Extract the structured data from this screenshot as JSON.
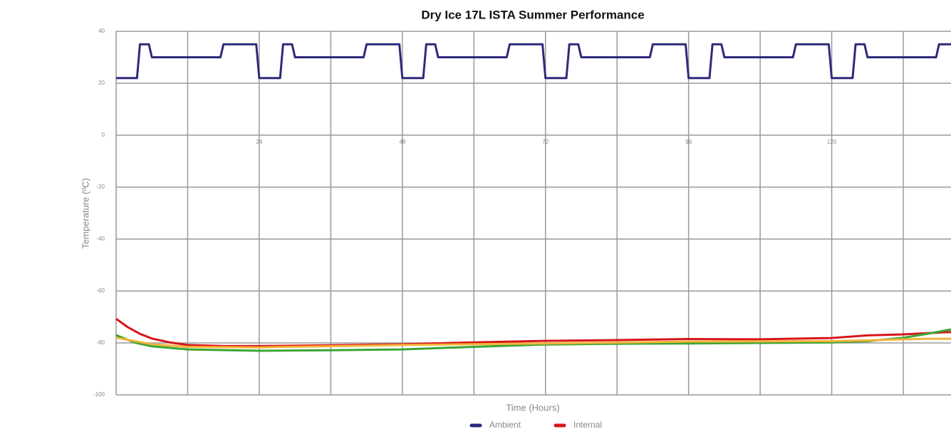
{
  "chart_data": {
    "type": "line",
    "title": "Dry Ice 17L ISTA Summer Performance",
    "x_label": "Time (Hours)",
    "y_label": "Temperature (ºC)",
    "xlim": [
      0,
      140
    ],
    "ylim": [
      -100,
      40
    ],
    "xticks": [
      24,
      48,
      72,
      96,
      120
    ],
    "x_minor_ticks": [
      12,
      36,
      60,
      84,
      108,
      132
    ],
    "yticks": [
      -100,
      -80,
      -60,
      -40,
      -20,
      0,
      20,
      40
    ],
    "grid": true,
    "legend": "bottom",
    "series": [
      {
        "name": "Ambient",
        "color": "#2e2a7a",
        "x": [
          0,
          3.5,
          4,
          5.5,
          6,
          17.5,
          18,
          23.5,
          24,
          27.5,
          28,
          29.5,
          30,
          41.5,
          42,
          47.5,
          48,
          51.5,
          52,
          53.5,
          54,
          65.5,
          66,
          71.5,
          72,
          75.5,
          76,
          77.5,
          78,
          89.5,
          90,
          95.5,
          96,
          99.5,
          100,
          101.5,
          102,
          113.5,
          114,
          119.5,
          120,
          123.5,
          124,
          125.5,
          126,
          137.5,
          138,
          140
        ],
        "values": [
          22,
          22,
          35,
          35,
          30,
          30,
          35,
          35,
          22,
          22,
          35,
          35,
          30,
          30,
          35,
          35,
          22,
          22,
          35,
          35,
          30,
          30,
          35,
          35,
          22,
          22,
          35,
          35,
          30,
          30,
          35,
          35,
          22,
          22,
          35,
          35,
          30,
          30,
          35,
          35,
          22,
          22,
          35,
          35,
          30,
          30,
          35,
          35
        ]
      },
      {
        "name": "Internal",
        "color": "#d7151a",
        "x": [
          0,
          2,
          4,
          6,
          9,
          12,
          18,
          24,
          36,
          48,
          60,
          72,
          84,
          96,
          108,
          120,
          126,
          132,
          140
        ],
        "values": [
          -70.7,
          -74,
          -76.5,
          -78.3,
          -79.8,
          -80.8,
          -81.2,
          -81.2,
          -80.9,
          -80.5,
          -79.8,
          -79.2,
          -78.9,
          -78.5,
          -78.6,
          -78.1,
          -77.1,
          -76.7,
          -75.8
        ]
      },
      {
        "color": "#3aa534",
        "x": [
          0,
          3,
          6,
          12,
          24,
          36,
          48,
          60,
          72,
          84,
          96,
          108,
          120,
          126,
          132,
          136,
          140
        ],
        "values": [
          -77,
          -79.8,
          -81.3,
          -82.5,
          -83,
          -82.8,
          -82.5,
          -81.5,
          -80.6,
          -80.3,
          -80.2,
          -80,
          -79.8,
          -79.3,
          -78,
          -76.5,
          -74.8
        ]
      },
      {
        "color": "#f5b33c",
        "x": [
          0,
          6,
          12,
          24,
          48,
          72,
          96,
          120,
          126,
          132,
          136,
          140
        ],
        "values": [
          -78,
          -80.5,
          -81.5,
          -81.7,
          -80.8,
          -80.2,
          -79.5,
          -79.3,
          -79,
          -78.6,
          -78.4,
          -78.4
        ]
      }
    ]
  }
}
